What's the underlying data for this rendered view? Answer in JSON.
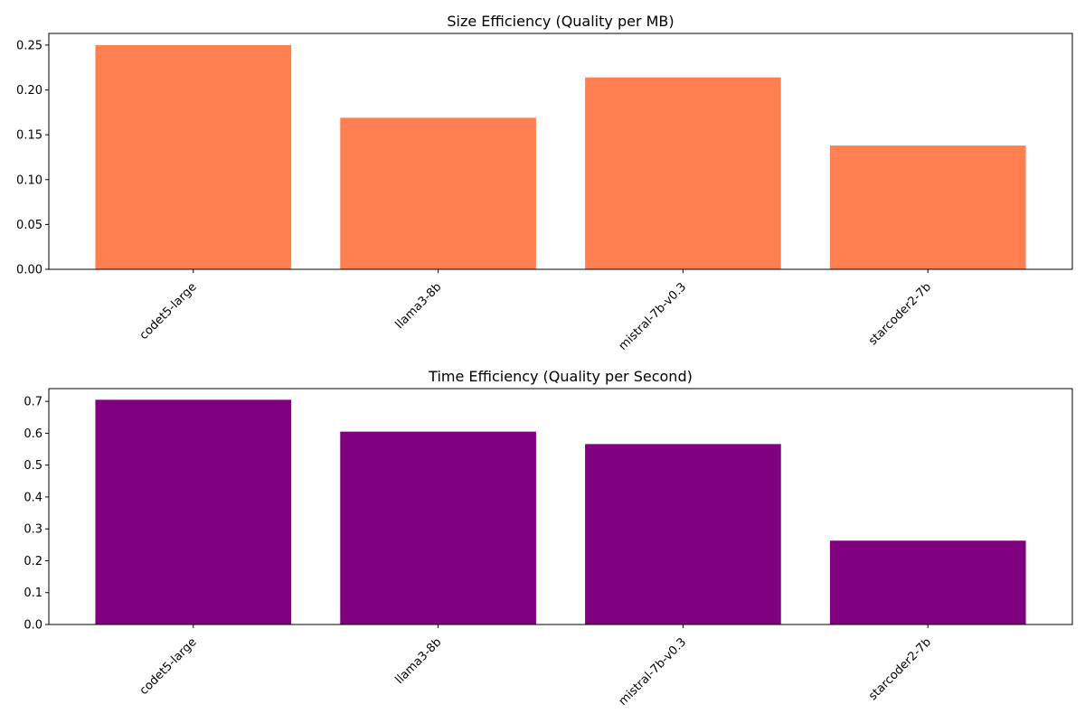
{
  "chart_data": [
    {
      "type": "bar",
      "title": "Size Efficiency (Quality per MB)",
      "xlabel": "",
      "ylabel": "",
      "categories": [
        "codet5-large",
        "llama3-8b",
        "mistral-7b-v0.3",
        "starcoder2-7b"
      ],
      "values": [
        0.25,
        0.169,
        0.214,
        0.138
      ],
      "ylim": [
        0,
        0.263
      ],
      "yticks": [
        "0.00",
        "0.05",
        "0.10",
        "0.15",
        "0.20",
        "0.25"
      ],
      "color": "#ff7f50",
      "grid": false,
      "legend": "none"
    },
    {
      "type": "bar",
      "title": "Time Efficiency (Quality per Second)",
      "xlabel": "",
      "ylabel": "",
      "categories": [
        "codet5-large",
        "llama3-8b",
        "mistral-7b-v0.3",
        "starcoder2-7b"
      ],
      "values": [
        0.705,
        0.605,
        0.566,
        0.263
      ],
      "ylim": [
        0,
        0.74
      ],
      "yticks": [
        "0.0",
        "0.1",
        "0.2",
        "0.3",
        "0.4",
        "0.5",
        "0.6",
        "0.7"
      ],
      "color": "#800080",
      "grid": false,
      "legend": "none"
    }
  ]
}
